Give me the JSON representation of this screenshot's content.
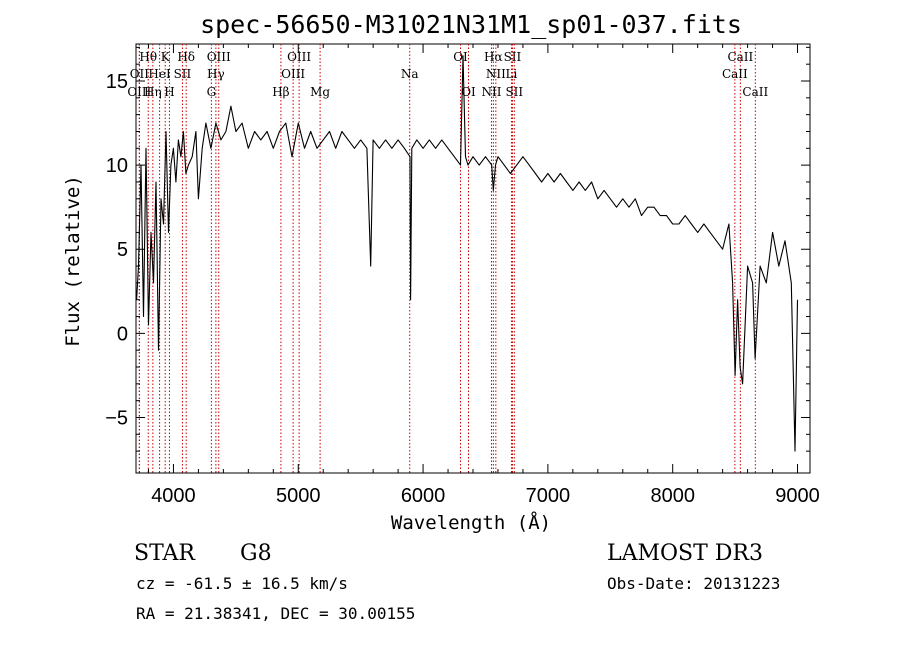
{
  "chart_data": {
    "type": "line",
    "title": "spec-56650-M31021N31M1_sp01-037.fits",
    "xlabel": "Wavelength (Å)",
    "ylabel": "Flux (relative)",
    "xlim": [
      3700,
      9100
    ],
    "ylim": [
      -8.3,
      17.2
    ],
    "x_ticks": [
      4000,
      5000,
      6000,
      7000,
      8000,
      9000
    ],
    "y_ticks": [
      -5,
      0,
      5,
      10,
      15
    ],
    "line_color": "#000000",
    "marker_color": "#cc0000",
    "grid": false,
    "series": [
      {
        "x": [
          3705,
          3720,
          3740,
          3760,
          3780,
          3800,
          3820,
          3840,
          3860,
          3880,
          3900,
          3920,
          3940,
          3960,
          3980,
          4000,
          4020,
          4040,
          4060,
          4080,
          4100,
          4120,
          4150,
          4180,
          4200,
          4230,
          4260,
          4300,
          4340,
          4380,
          4420,
          4460,
          4500,
          4550,
          4600,
          4650,
          4700,
          4750,
          4800,
          4850,
          4900,
          4950,
          5000,
          5050,
          5100,
          5150,
          5200,
          5250,
          5300,
          5350,
          5400,
          5450,
          5500,
          5550,
          5580,
          5600,
          5650,
          5700,
          5750,
          5800,
          5850,
          5895,
          5900,
          5910,
          5950,
          6000,
          6050,
          6100,
          6150,
          6200,
          6250,
          6300,
          6320,
          6340,
          6360,
          6400,
          6450,
          6500,
          6550,
          6563,
          6580,
          6600,
          6650,
          6700,
          6750,
          6800,
          6850,
          6900,
          6950,
          7000,
          7050,
          7100,
          7150,
          7200,
          7250,
          7300,
          7350,
          7400,
          7450,
          7500,
          7550,
          7600,
          7650,
          7700,
          7750,
          7800,
          7850,
          7900,
          7950,
          8000,
          8050,
          8100,
          8150,
          8200,
          8250,
          8300,
          8350,
          8400,
          8450,
          8480,
          8500,
          8520,
          8540,
          8560,
          8600,
          8640,
          8660,
          8700,
          8750,
          8800,
          8850,
          8900,
          8950,
          8980,
          9000
        ],
        "y": [
          2.0,
          4.0,
          10.0,
          1.0,
          11.0,
          0.5,
          6.0,
          3.0,
          9.0,
          -1.0,
          8.0,
          6.5,
          12.0,
          6.0,
          10.0,
          11.0,
          9.0,
          11.5,
          10.5,
          12.0,
          9.5,
          10.0,
          10.5,
          12.0,
          8.0,
          11.0,
          12.5,
          11.0,
          12.5,
          11.5,
          12.0,
          13.5,
          12.0,
          12.5,
          11.0,
          12.0,
          11.5,
          12.0,
          11.0,
          12.0,
          12.5,
          10.5,
          12.5,
          11.0,
          12.0,
          11.0,
          11.5,
          12.0,
          11.0,
          12.0,
          11.5,
          11.0,
          11.5,
          11.0,
          4.0,
          11.5,
          11.0,
          11.5,
          11.0,
          11.5,
          11.0,
          10.5,
          2.0,
          11.0,
          11.5,
          11.0,
          11.5,
          11.0,
          11.5,
          11.0,
          10.5,
          10.0,
          16.5,
          10.5,
          10.0,
          10.5,
          10.0,
          10.5,
          10.0,
          8.5,
          10.0,
          10.5,
          10.0,
          9.5,
          10.0,
          10.5,
          10.0,
          9.5,
          9.0,
          9.5,
          9.0,
          9.5,
          9.0,
          8.5,
          9.0,
          8.5,
          9.0,
          8.0,
          8.5,
          8.0,
          7.5,
          8.0,
          7.5,
          8.0,
          7.0,
          7.5,
          7.5,
          7.0,
          7.0,
          6.5,
          6.5,
          7.0,
          6.5,
          6.0,
          6.5,
          6.0,
          5.5,
          5.0,
          6.5,
          3.0,
          -2.5,
          2.0,
          -2.0,
          -3.0,
          4.0,
          3.0,
          -1.5,
          4.0,
          3.0,
          6.0,
          4.0,
          5.5,
          3.0,
          -7.0,
          2.0
        ]
      }
    ],
    "line_markers": [
      {
        "label": "Hθ",
        "x": 3798,
        "row": 1
      },
      {
        "label": "K",
        "x": 3934,
        "row": 1
      },
      {
        "label": "Hδ",
        "x": 4102,
        "row": 1
      },
      {
        "label": "OIII",
        "x": 4363,
        "row": 1
      },
      {
        "label": "OIII",
        "x": 5007,
        "row": 1
      },
      {
        "label": "OI",
        "x": 6300,
        "row": 1
      },
      {
        "label": "Hα",
        "x": 6563,
        "row": 1
      },
      {
        "label": "SII",
        "x": 6716,
        "row": 1
      },
      {
        "label": "CaII",
        "x": 8542,
        "row": 1
      },
      {
        "label": "OII",
        "x": 3727,
        "row": 2
      },
      {
        "label": "HeI",
        "x": 3889,
        "row": 2
      },
      {
        "label": "SII",
        "x": 4072,
        "row": 2
      },
      {
        "label": "Hγ",
        "x": 4340,
        "row": 2
      },
      {
        "label": "OIII",
        "x": 4959,
        "row": 2
      },
      {
        "label": "Na",
        "x": 5893,
        "row": 2
      },
      {
        "label": "NII",
        "x": 6583,
        "row": 2
      },
      {
        "label": "Li",
        "x": 6708,
        "row": 2
      },
      {
        "label": "CaII",
        "x": 8498,
        "row": 2
      },
      {
        "label": "OIII",
        "x": 3727,
        "row": 3
      },
      {
        "label": "Hη",
        "x": 3835,
        "row": 3
      },
      {
        "label": "H",
        "x": 3968,
        "row": 3
      },
      {
        "label": "G",
        "x": 4304,
        "row": 3
      },
      {
        "label": "Hβ",
        "x": 4861,
        "row": 3
      },
      {
        "label": "Mg",
        "x": 5175,
        "row": 3
      },
      {
        "label": "OI",
        "x": 6364,
        "row": 3
      },
      {
        "label": "NII",
        "x": 6548,
        "row": 3
      },
      {
        "label": "SII",
        "x": 6731,
        "row": 3
      },
      {
        "label": "CaII",
        "x": 8662,
        "row": 3
      }
    ]
  },
  "info": {
    "object_class": "STAR",
    "subclass": "G8",
    "survey": "LAMOST DR3",
    "redshift": "cz = -61.5 ± 16.5 km/s",
    "obs_date": "Obs-Date: 20131223",
    "coords": "RA =  21.38341, DEC =  30.00155"
  }
}
